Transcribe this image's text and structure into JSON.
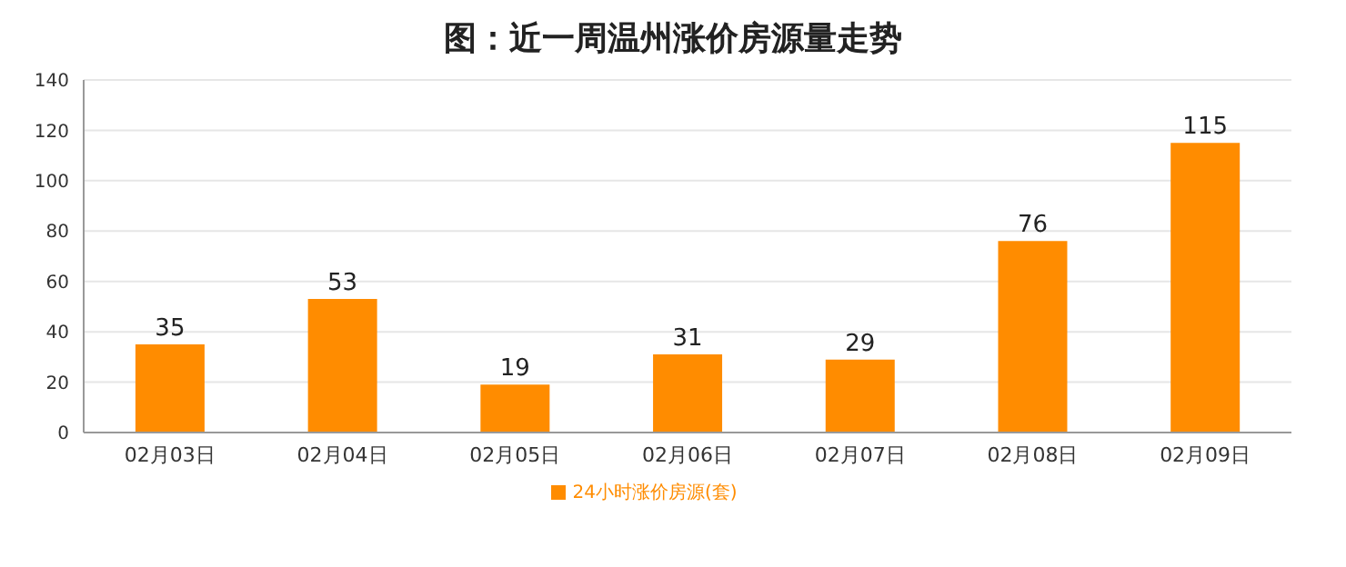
{
  "chart_data": {
    "type": "bar",
    "title": "图：近一周温州涨价房源量走势",
    "categories": [
      "02月03日",
      "02月04日",
      "02月05日",
      "02月06日",
      "02月07日",
      "02月08日",
      "02月09日"
    ],
    "series": [
      {
        "name": "24小时涨价房源(套)",
        "color": "#ff8c00",
        "values": [
          35,
          53,
          19,
          31,
          29,
          76,
          115
        ]
      }
    ],
    "ylim": [
      0,
      140
    ],
    "yticks": [
      0,
      20,
      40,
      60,
      80,
      100,
      120,
      140
    ],
    "grid": "y",
    "legend": "bottom",
    "data_labels": true
  }
}
